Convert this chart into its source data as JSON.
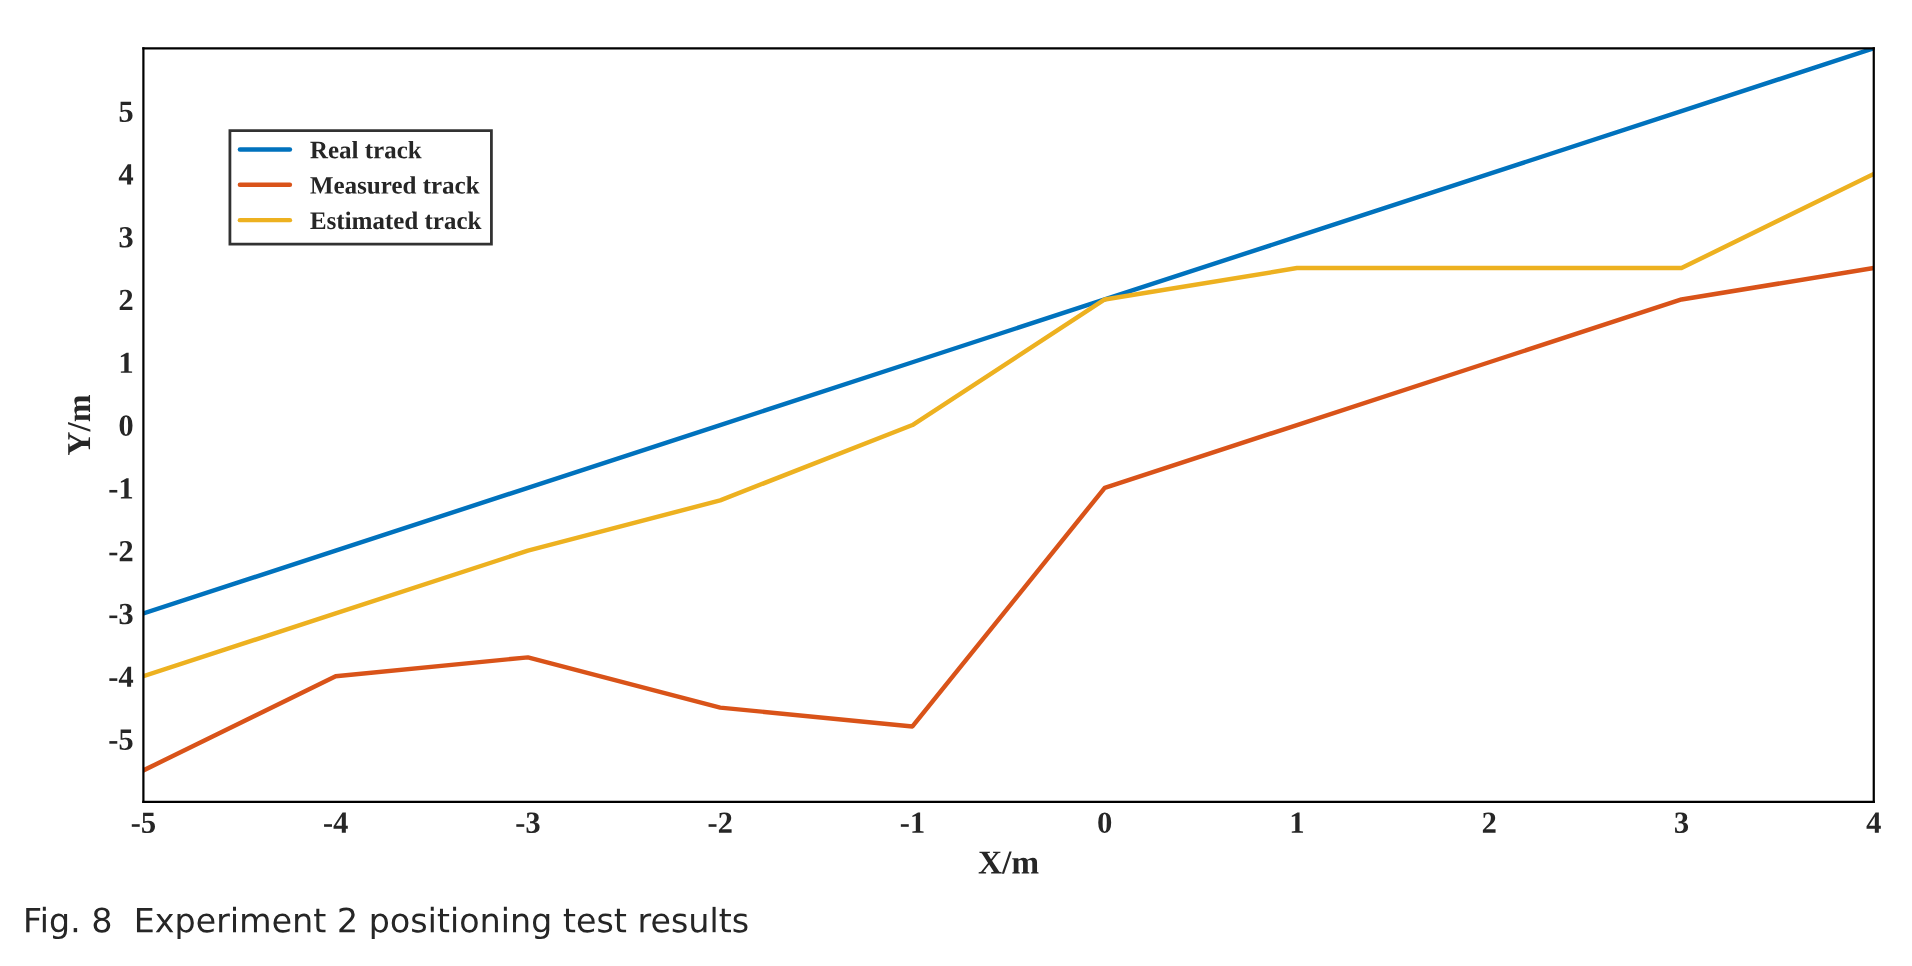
{
  "chart_data": {
    "type": "line",
    "xlabel": "X/m",
    "ylabel": "Y/m",
    "x": [
      -5,
      -4,
      -3,
      -2,
      -1,
      0,
      1,
      2,
      3,
      4
    ],
    "series": [
      {
        "name": "Real track",
        "color": "#0072bd",
        "values": [
          -3,
          -2,
          -1,
          0,
          1,
          2,
          3,
          4,
          5,
          6
        ]
      },
      {
        "name": "Measured track",
        "color": "#d95319",
        "values": [
          -5.5,
          -4,
          -3.7,
          -4.5,
          -4.8,
          -1,
          0,
          1,
          2,
          2.5
        ]
      },
      {
        "name": "Estimated track",
        "color": "#edb120",
        "values": [
          -4,
          -3,
          -2,
          -1.2,
          0,
          2,
          2.5,
          2.5,
          2.5,
          4
        ]
      }
    ],
    "xlim": [
      -5,
      4
    ],
    "xticks": [
      -5,
      -4,
      -3,
      -2,
      -1,
      0,
      1,
      2,
      3,
      4
    ],
    "ylim": [
      -6,
      6
    ],
    "yticks": [
      -5,
      -4,
      -3,
      -2,
      -1,
      0,
      1,
      2,
      3,
      4,
      5
    ],
    "grid": false,
    "legend": "top left",
    "annotations": [
      "Fig. 8  Experiment 2 positioning test results"
    ]
  }
}
